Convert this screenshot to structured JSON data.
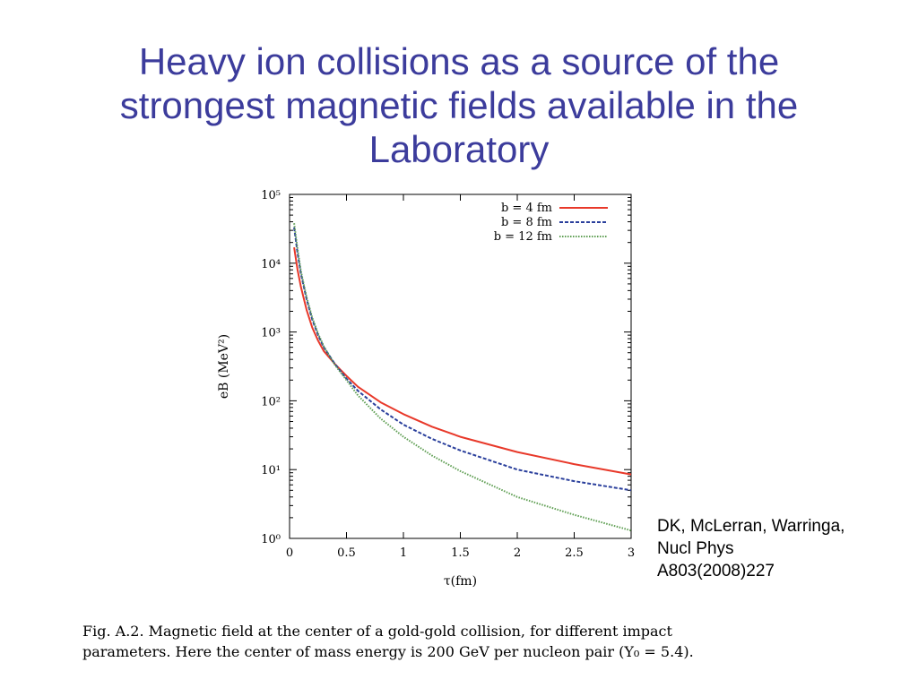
{
  "slide": {
    "title_lines": [
      "Heavy ion collisions as a source of the",
      "strongest magnetic fields available in the",
      "Laboratory"
    ],
    "citation_lines": [
      "DK, McLerran, Warringa,",
      "Nucl Phys",
      "A803(2008)227"
    ],
    "caption_lines": [
      "Fig. A.2.  Magnetic field at the center of a gold-gold collision, for different impact",
      "parameters. Here the center of mass energy is 200 GeV per nucleon pair (Y₀ = 5.4)."
    ]
  },
  "chart_data": {
    "type": "line",
    "xlabel": "τ(fm)",
    "ylabel": "eB (MeV²)",
    "xlim": [
      0,
      3
    ],
    "ylim": [
      1,
      100000
    ],
    "y_scale": "log",
    "x_ticks": [
      0,
      0.5,
      1,
      1.5,
      2,
      2.5,
      3
    ],
    "x_tick_labels": [
      "0",
      "0.5",
      "1",
      "1.5",
      "2",
      "2.5",
      "3"
    ],
    "y_ticks": [
      1,
      10,
      100,
      1000,
      10000,
      100000
    ],
    "y_tick_labels": [
      "10⁰",
      "10¹",
      "10²",
      "10³",
      "10⁴",
      "10⁵"
    ],
    "grid": false,
    "legend_position": "top-right",
    "series": [
      {
        "name": "b = 4 fm",
        "color": "#e8392a",
        "dash": "solid",
        "x": [
          0.04,
          0.07,
          0.1,
          0.15,
          0.2,
          0.25,
          0.3,
          0.4,
          0.5,
          0.6,
          0.8,
          1.0,
          1.25,
          1.5,
          2.0,
          2.5,
          3.0
        ],
        "y": [
          17000,
          8000,
          4500,
          2100,
          1150,
          750,
          530,
          340,
          230,
          160,
          95,
          64,
          42,
          30,
          18,
          12,
          8.5
        ]
      },
      {
        "name": "b = 8 fm",
        "color": "#2a3f9c",
        "dash": "dashed",
        "x": [
          0.04,
          0.07,
          0.1,
          0.15,
          0.2,
          0.25,
          0.3,
          0.4,
          0.5,
          0.6,
          0.8,
          1.0,
          1.25,
          1.5,
          2.0,
          2.5,
          3.0
        ],
        "y": [
          33000,
          14000,
          7000,
          3000,
          1500,
          900,
          600,
          340,
          210,
          140,
          75,
          45,
          28,
          19,
          10,
          6.8,
          5
        ]
      },
      {
        "name": "b = 12 fm",
        "color": "#5e9e52",
        "dash": "dotted",
        "x": [
          0.04,
          0.07,
          0.1,
          0.15,
          0.2,
          0.25,
          0.3,
          0.4,
          0.5,
          0.6,
          0.8,
          1.0,
          1.25,
          1.5,
          2.0,
          2.5,
          3.0
        ],
        "y": [
          38000,
          16000,
          7600,
          3200,
          1600,
          950,
          620,
          330,
          200,
          120,
          55,
          30,
          16,
          9.5,
          4,
          2.2,
          1.3
        ]
      }
    ]
  }
}
